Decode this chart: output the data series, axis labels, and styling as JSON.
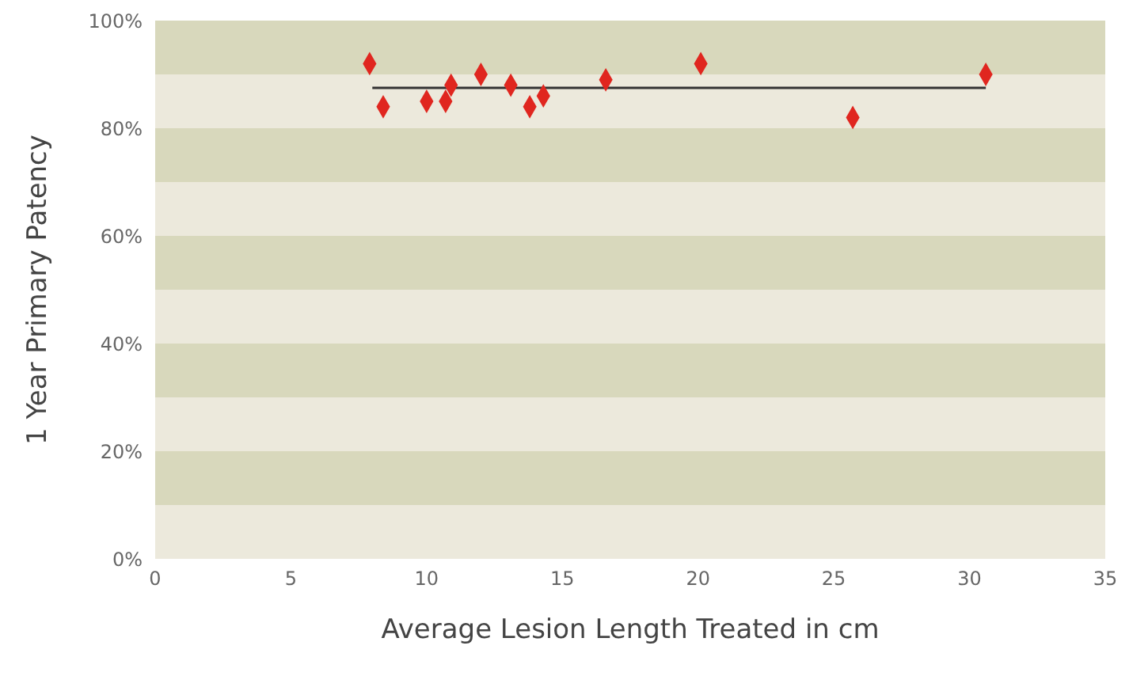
{
  "chart_data": {
    "type": "scatter",
    "xlabel": "Average Lesion Length Treated in cm",
    "ylabel": "1 Year Primary Patency",
    "xlim": [
      0,
      35
    ],
    "xticks": [
      0,
      5,
      10,
      15,
      20,
      25,
      30,
      35
    ],
    "ylim": [
      0,
      100
    ],
    "yticks": [
      {
        "value": 0,
        "label": "0%"
      },
      {
        "value": 20,
        "label": "20%"
      },
      {
        "value": 40,
        "label": "40%"
      },
      {
        "value": 60,
        "label": "60%"
      },
      {
        "value": 80,
        "label": "80%"
      },
      {
        "value": 100,
        "label": "100%"
      }
    ],
    "marker": "diamond",
    "bands": [
      {
        "axis": "y",
        "from": 0,
        "to": 10,
        "color": "#ece9dc"
      },
      {
        "axis": "y",
        "from": 10,
        "to": 20,
        "color": "#d8d8bc"
      },
      {
        "axis": "y",
        "from": 20,
        "to": 30,
        "color": "#ece9dc"
      },
      {
        "axis": "y",
        "from": 30,
        "to": 40,
        "color": "#d8d8bc"
      },
      {
        "axis": "y",
        "from": 40,
        "to": 50,
        "color": "#ece9dc"
      },
      {
        "axis": "y",
        "from": 50,
        "to": 60,
        "color": "#d8d8bc"
      },
      {
        "axis": "y",
        "from": 60,
        "to": 70,
        "color": "#ece9dc"
      },
      {
        "axis": "y",
        "from": 70,
        "to": 80,
        "color": "#d8d8bc"
      },
      {
        "axis": "y",
        "from": 80,
        "to": 90,
        "color": "#ece9dc"
      },
      {
        "axis": "y",
        "from": 90,
        "to": 100,
        "color": "#d8d8bc"
      }
    ],
    "series": [
      {
        "color": "#e0261f",
        "x": [
          7.9,
          8.4,
          10.0,
          10.7,
          10.9,
          12.0,
          13.1,
          13.8,
          14.3,
          16.6,
          20.1,
          25.7,
          30.6
        ],
        "values": [
          92,
          84,
          85,
          85,
          88,
          90,
          88,
          84,
          86,
          89,
          92,
          82,
          90
        ]
      },
      {
        "type": "line",
        "color": "#333333",
        "marker": "none",
        "line_style": "solid",
        "x": [
          8,
          30.6
        ],
        "values": [
          87.5,
          87.5
        ]
      }
    ]
  }
}
